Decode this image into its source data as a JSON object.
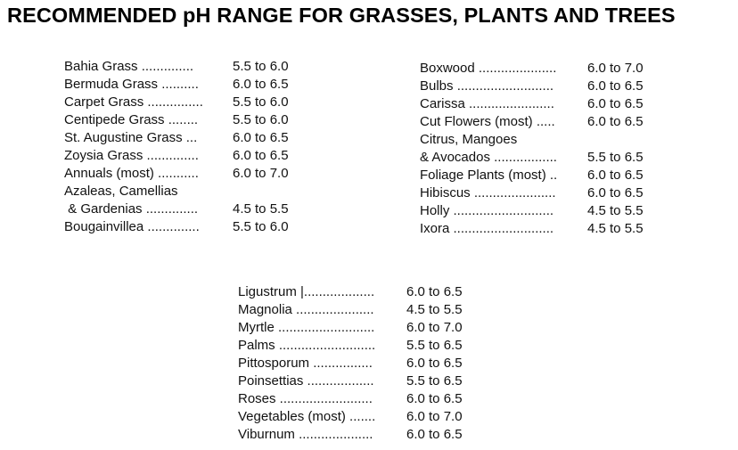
{
  "title": "RECOMMENDED pH RANGE FOR GRASSES, PLANTS AND TREES",
  "left_column": [
    {
      "name": "Bahia Grass ..............",
      "range": "5.5 to 6.0"
    },
    {
      "name": "Bermuda Grass ..........",
      "range": "6.0 to 6.5"
    },
    {
      "name": "Carpet Grass ...............",
      "range": "5.5 to 6.0"
    },
    {
      "name": "Centipede Grass ........",
      "range": "5.5 to 6.0"
    },
    {
      "name": "St. Augustine Grass ...",
      "range": "6.0 to 6.5"
    },
    {
      "name": "Zoysia Grass ..............",
      "range": "6.0 to 6.5"
    },
    {
      "name": "Annuals (most) ...........",
      "range": "6.0 to 7.0"
    },
    {
      "name": "Azaleas, Camellias",
      "range": ""
    },
    {
      "name": " & Gardenias ..............",
      "range": "4.5 to 5.5"
    },
    {
      "name": "Bougainvillea ..............",
      "range": "5.5 to 6.0"
    }
  ],
  "right_column": [
    {
      "name": "Boxwood .....................",
      "range": "6.0 to 7.0"
    },
    {
      "name": "Bulbs ..........................",
      "range": "6.0 to 6.5"
    },
    {
      "name": "Carissa .......................",
      "range": "6.0 to 6.5"
    },
    {
      "name": "Cut Flowers (most) .....",
      "range": "6.0 to 6.5"
    },
    {
      "name": "Citrus, Mangoes",
      "range": ""
    },
    {
      "name": "& Avocados .................",
      "range": "5.5 to 6.5"
    },
    {
      "name": "Foliage Plants (most) ..",
      "range": "6.0 to 6.5"
    },
    {
      "name": "Hibiscus ......................",
      "range": "6.0 to 6.5"
    },
    {
      "name": "Holly ...........................",
      "range": "4.5 to 5.5"
    },
    {
      "name": "Ixora ...........................",
      "range": "4.5 to 5.5"
    }
  ],
  "bottom_column": [
    {
      "name": "Ligustrum |...................",
      "range": "6.0 to 6.5"
    },
    {
      "name": "Magnolia .....................",
      "range": "4.5 to 5.5"
    },
    {
      "name": "Myrtle ..........................",
      "range": "6.0 to 7.0"
    },
    {
      "name": "Palms ..........................",
      "range": "5.5 to 6.5"
    },
    {
      "name": "Pittosporum ................",
      "range": "6.0 to 6.5"
    },
    {
      "name": "Poinsettias ..................",
      "range": "5.5 to 6.5"
    },
    {
      "name": "Roses .........................",
      "range": "6.0 to 6.5"
    },
    {
      "name": "Vegetables (most) .......",
      "range": "6.0 to 7.0"
    },
    {
      "name": "Viburnum ....................",
      "range": "6.0 to 6.5"
    }
  ]
}
